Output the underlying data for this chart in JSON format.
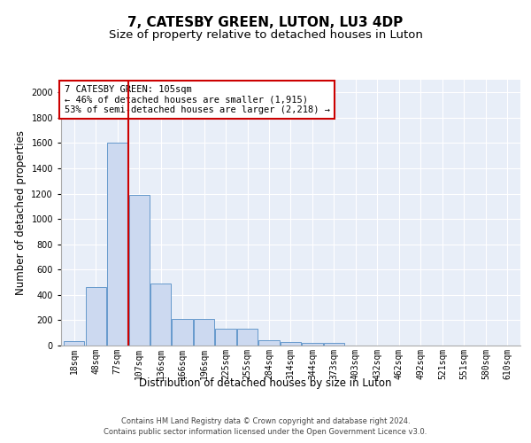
{
  "title": "7, CATESBY GREEN, LUTON, LU3 4DP",
  "subtitle": "Size of property relative to detached houses in Luton",
  "xlabel": "Distribution of detached houses by size in Luton",
  "ylabel": "Number of detached properties",
  "footer_line1": "Contains HM Land Registry data © Crown copyright and database right 2024.",
  "footer_line2": "Contains public sector information licensed under the Open Government Licence v3.0.",
  "bin_labels": [
    "18sqm",
    "48sqm",
    "77sqm",
    "107sqm",
    "136sqm",
    "166sqm",
    "196sqm",
    "225sqm",
    "255sqm",
    "284sqm",
    "314sqm",
    "344sqm",
    "373sqm",
    "403sqm",
    "432sqm",
    "462sqm",
    "492sqm",
    "521sqm",
    "551sqm",
    "580sqm",
    "610sqm"
  ],
  "bar_values": [
    35,
    460,
    1600,
    1190,
    490,
    210,
    210,
    130,
    130,
    45,
    30,
    20,
    18,
    0,
    0,
    0,
    0,
    0,
    0,
    0,
    0
  ],
  "bar_color": "#ccd9f0",
  "bar_edge_color": "#6699cc",
  "red_line_x": 2.5,
  "annotation_text": "7 CATESBY GREEN: 105sqm\n← 46% of detached houses are smaller (1,915)\n53% of semi-detached houses are larger (2,218) →",
  "annotation_box_color": "#ffffff",
  "annotation_box_edge": "#cc0000",
  "ylim": [
    0,
    2100
  ],
  "yticks": [
    0,
    200,
    400,
    600,
    800,
    1000,
    1200,
    1400,
    1600,
    1800,
    2000
  ],
  "plot_bg_color": "#e8eef8",
  "title_fontsize": 11,
  "subtitle_fontsize": 9.5,
  "axis_label_fontsize": 8.5,
  "tick_fontsize": 7,
  "footer_fontsize": 6,
  "annotation_fontsize": 7.5
}
